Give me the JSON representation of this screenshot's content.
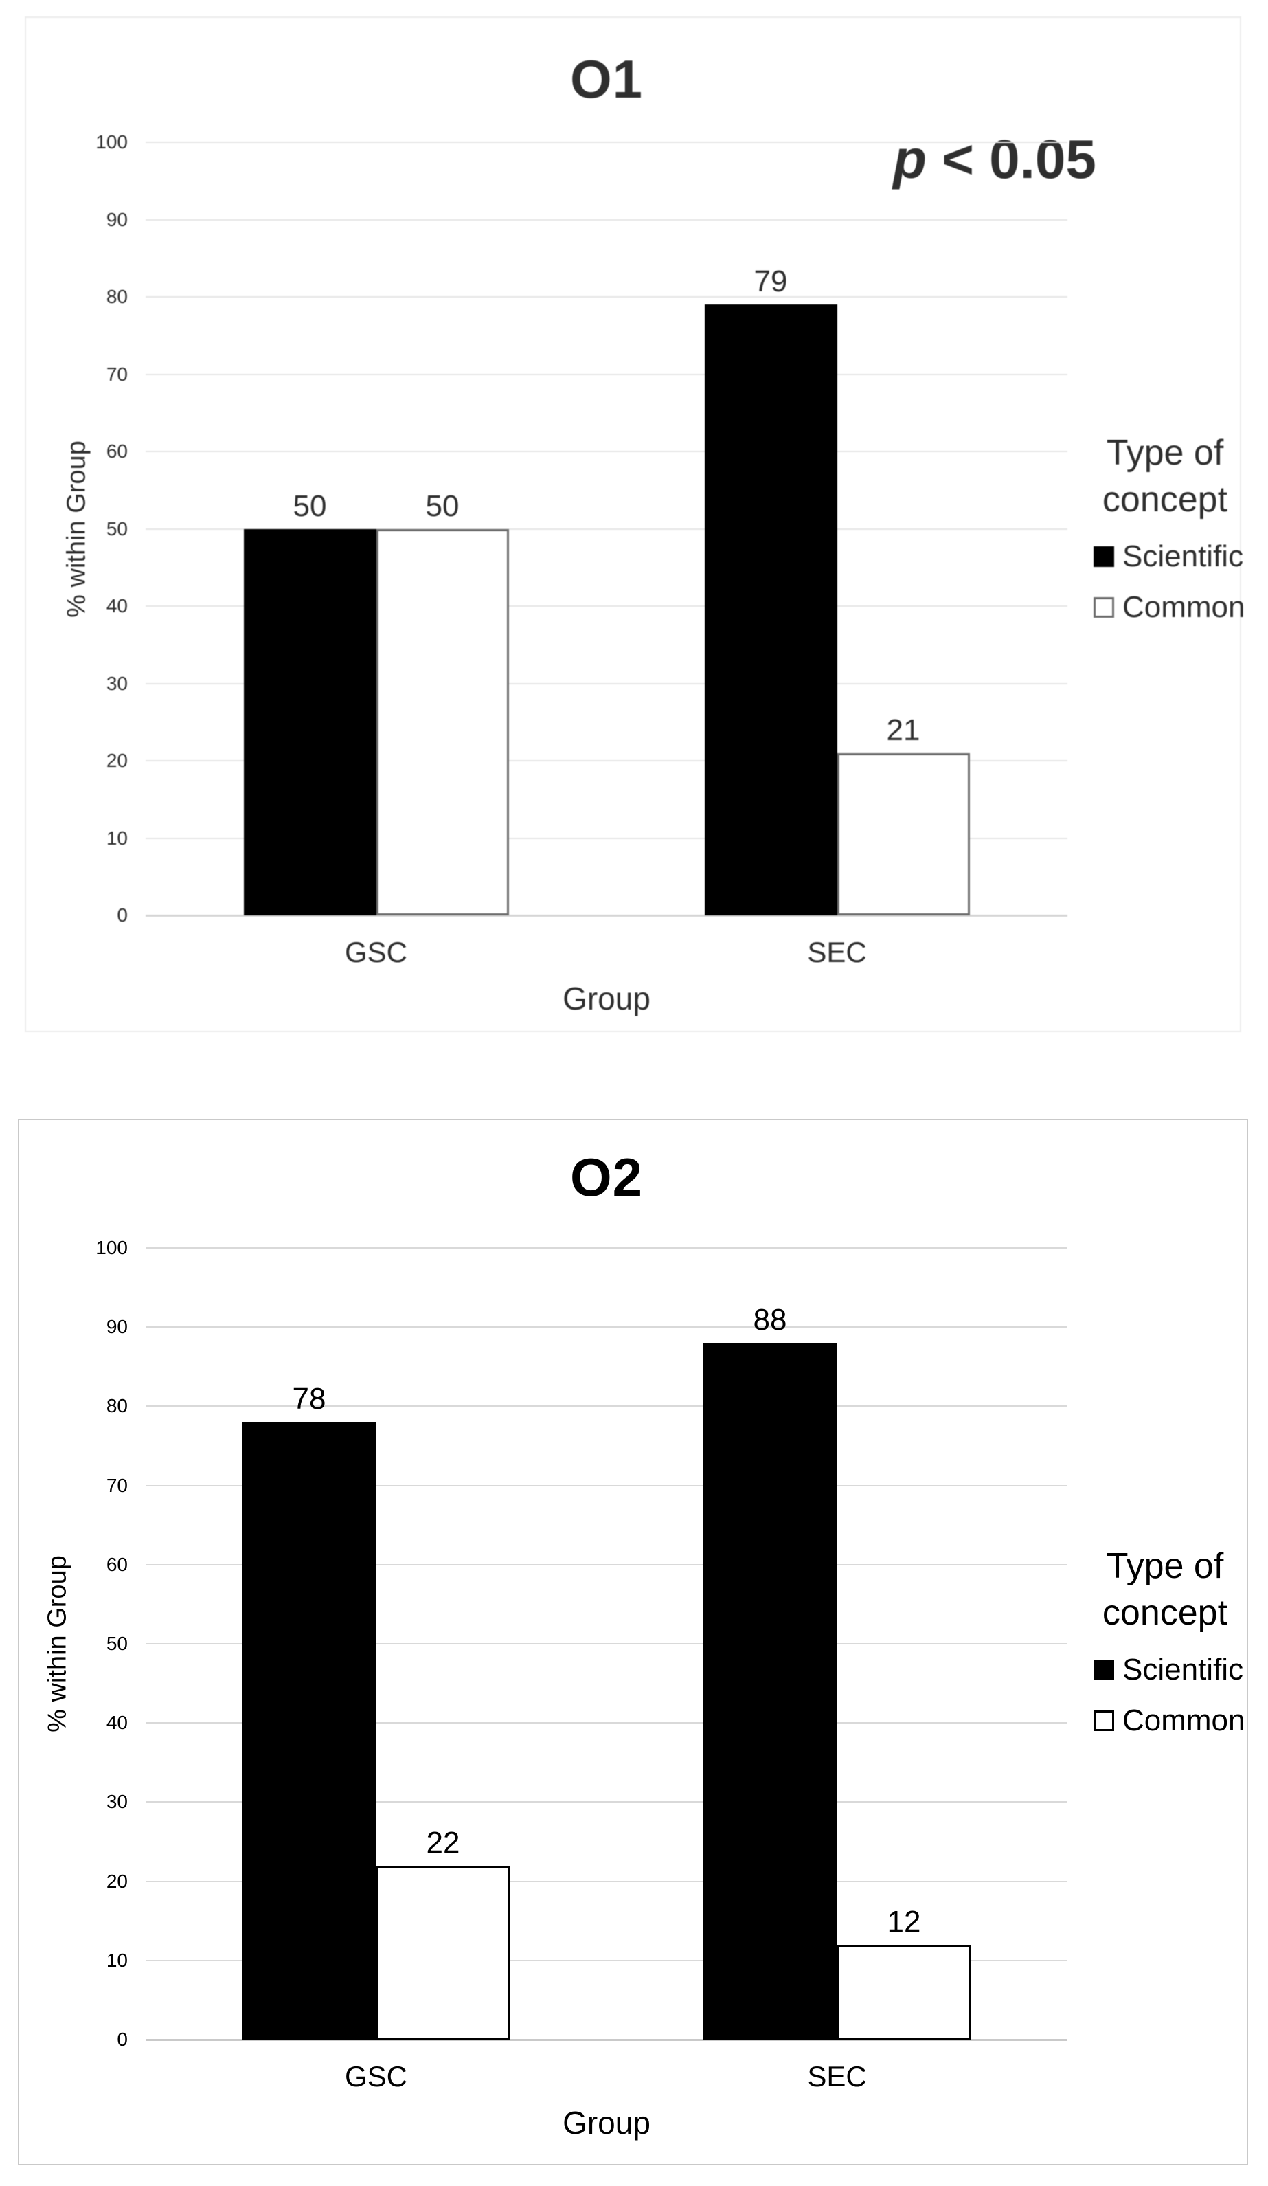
{
  "chart_data": [
    {
      "type": "bar",
      "title": "O1",
      "annotation": "p < 0.05",
      "annotation_var": "p",
      "annotation_rest": " < 0.05",
      "categories": [
        "GSC",
        "SEC"
      ],
      "series": [
        {
          "name": "Scientific",
          "values": [
            50,
            79
          ]
        },
        {
          "name": "Common",
          "values": [
            50,
            21
          ]
        }
      ],
      "xlabel": "Group",
      "ylabel": "% within Group",
      "ylim": [
        0,
        100
      ],
      "yticks": [
        0,
        10,
        20,
        30,
        40,
        50,
        60,
        70,
        80,
        90,
        100
      ],
      "grid": true,
      "legend": {
        "title": "Type of concept",
        "position": "right",
        "items": [
          "Scientific",
          "Common"
        ]
      },
      "colors": {
        "scientific_fill": "#000000",
        "common_fill": "#ffffff",
        "common_border": "#6e6e6e",
        "gridline": "#e6e6e6",
        "axis_line": "#d6d6d6",
        "panel_border": "#ececec"
      }
    },
    {
      "type": "bar",
      "title": "O2",
      "annotation": "",
      "annotation_var": "",
      "annotation_rest": "",
      "categories": [
        "GSC",
        "SEC"
      ],
      "series": [
        {
          "name": "Scientific",
          "values": [
            78,
            88
          ]
        },
        {
          "name": "Common",
          "values": [
            22,
            12
          ]
        }
      ],
      "xlabel": "Group",
      "ylabel": "% within Group",
      "ylim": [
        0,
        100
      ],
      "yticks": [
        0,
        10,
        20,
        30,
        40,
        50,
        60,
        70,
        80,
        90,
        100
      ],
      "grid": true,
      "legend": {
        "title": "Type of concept",
        "position": "right",
        "items": [
          "Scientific",
          "Common"
        ]
      },
      "colors": {
        "scientific_fill": "#000000",
        "common_fill": "#ffffff",
        "common_border": "#000000",
        "gridline": "#d9d9d9",
        "axis_line": "#c9c9c9",
        "panel_border": "#c9c9c9"
      }
    }
  ]
}
